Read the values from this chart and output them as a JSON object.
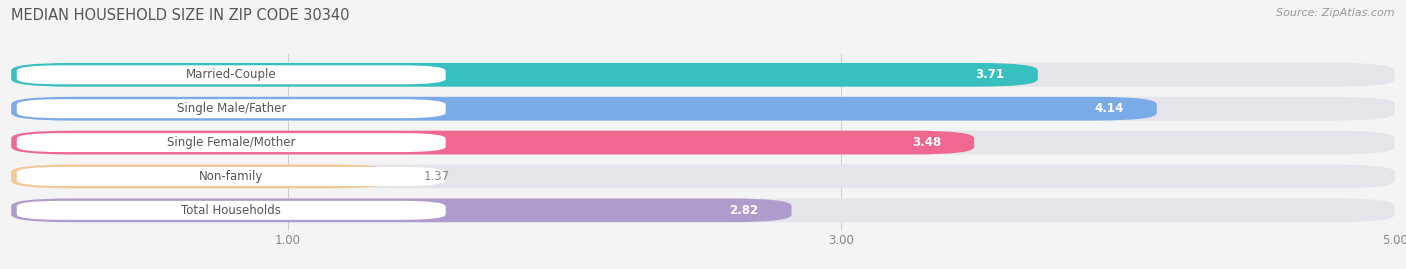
{
  "title": "MEDIAN HOUSEHOLD SIZE IN ZIP CODE 30340",
  "source": "Source: ZipAtlas.com",
  "categories": [
    "Married-Couple",
    "Single Male/Father",
    "Single Female/Mother",
    "Non-family",
    "Total Households"
  ],
  "values": [
    3.71,
    4.14,
    3.48,
    1.37,
    2.82
  ],
  "bar_colors": [
    "#38bfbf",
    "#7aaae8",
    "#f06890",
    "#f5c898",
    "#b09ccc"
  ],
  "xlim": [
    0,
    5.0
  ],
  "xticks": [
    1.0,
    3.0,
    5.0
  ],
  "background_color": "#f4f4f4",
  "bar_background_color": "#e4e4ea",
  "title_fontsize": 10.5,
  "source_fontsize": 8,
  "label_fontsize": 8.5,
  "value_fontsize": 8.5
}
